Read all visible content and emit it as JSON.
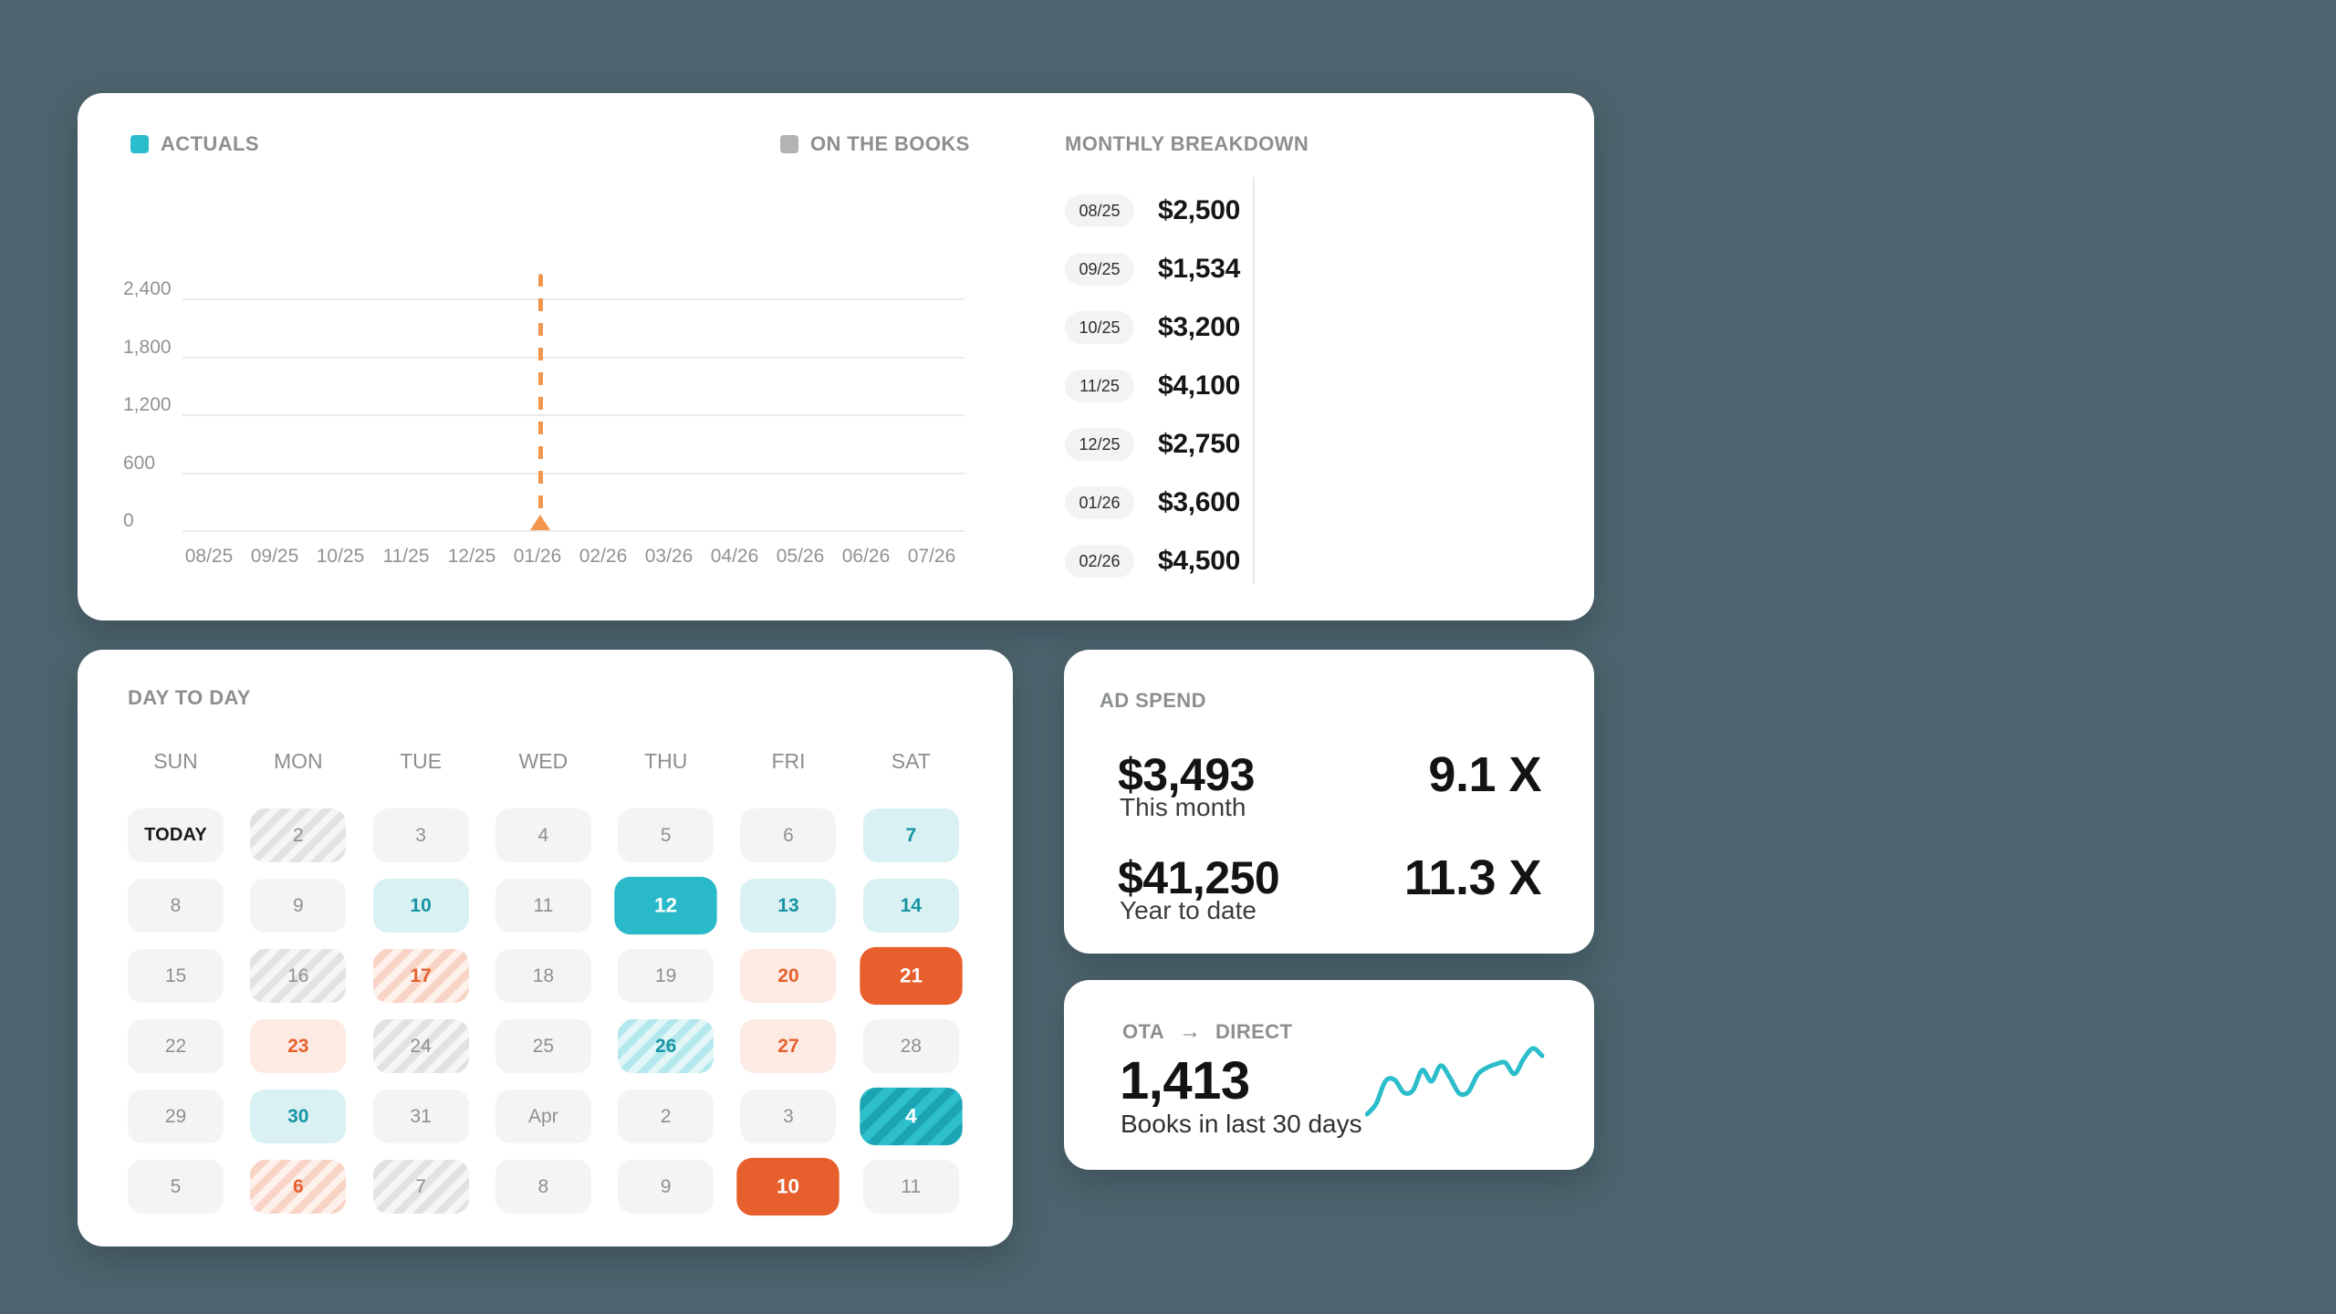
{
  "colors": {
    "background": "#4d646e",
    "teal_accent": "#2bbccb",
    "legend_gray": "#b1b3b4",
    "orange_accent": "#e75f2c",
    "marker_orange": "#f2964e"
  },
  "revenue_chart": {
    "legend": [
      {
        "label": "ACTUALS",
        "color": "#2bbccb"
      },
      {
        "label": "ON THE BOOKS",
        "color": "#b1b3b4"
      }
    ],
    "monthly_title": "MONTHLY BREAKDOWN",
    "y_ticks": [
      "2,400",
      "1,800",
      "1,200",
      "600",
      "0"
    ],
    "x_ticks": [
      "08/25",
      "09/25",
      "10/25",
      "11/25",
      "12/25",
      "01/26",
      "02/26",
      "03/26",
      "04/26",
      "05/26",
      "06/26",
      "07/26"
    ],
    "today_marker_x": "01/26",
    "monthly_breakdown": [
      {
        "month": "08/25",
        "value": "$2,500"
      },
      {
        "month": "09/25",
        "value": "$1,534"
      },
      {
        "month": "10/25",
        "value": "$3,200"
      },
      {
        "month": "11/25",
        "value": "$4,100"
      },
      {
        "month": "12/25",
        "value": "$2,750"
      },
      {
        "month": "01/26",
        "value": "$3,600"
      },
      {
        "month": "02/26",
        "value": "$4,500"
      }
    ]
  },
  "chart_data": [
    {
      "type": "line",
      "title": "",
      "x": [
        "08/25",
        "09/25",
        "10/25",
        "11/25",
        "12/25",
        "01/26",
        "02/26",
        "03/26",
        "04/26",
        "05/26",
        "06/26",
        "07/26"
      ],
      "y_ticks": [
        0,
        600,
        1200,
        1800,
        2400
      ],
      "ylim": [
        0,
        2400
      ],
      "grid": "horizontal",
      "legend_position": "top",
      "series": [
        {
          "name": "ACTUALS",
          "values": []
        },
        {
          "name": "ON THE BOOKS",
          "values": []
        }
      ],
      "annotations": [
        {
          "type": "vline",
          "x": "01/26",
          "style": "dashed",
          "color": "#f2964e",
          "marker": "triangle-up"
        }
      ]
    },
    {
      "type": "line",
      "title": "",
      "label": "Books in last 30 days",
      "color": "#2cbdcb",
      "values_relative_0to100": [
        6,
        20,
        50,
        52,
        35,
        38,
        65,
        50,
        71,
        55,
        34,
        36,
        59,
        68,
        73,
        75,
        60,
        80,
        94,
        84
      ]
    }
  ],
  "calendar": {
    "title": "DAY TO DAY",
    "day_headers": [
      "SUN",
      "MON",
      "TUE",
      "WED",
      "THU",
      "FRI",
      "SAT"
    ],
    "cells": [
      {
        "label": "TODAY",
        "style": "today"
      },
      {
        "label": "2",
        "style": "gray-stripe"
      },
      {
        "label": "3",
        "style": "default"
      },
      {
        "label": "4",
        "style": "default"
      },
      {
        "label": "5",
        "style": "default"
      },
      {
        "label": "6",
        "style": "default"
      },
      {
        "label": "7",
        "style": "teal-light"
      },
      {
        "label": "8",
        "style": "default"
      },
      {
        "label": "9",
        "style": "default"
      },
      {
        "label": "10",
        "style": "teal-light"
      },
      {
        "label": "11",
        "style": "default"
      },
      {
        "label": "12",
        "style": "teal-solid"
      },
      {
        "label": "13",
        "style": "teal-light"
      },
      {
        "label": "14",
        "style": "teal-light"
      },
      {
        "label": "15",
        "style": "default"
      },
      {
        "label": "16",
        "style": "gray-stripe"
      },
      {
        "label": "17",
        "style": "orange-stripe"
      },
      {
        "label": "18",
        "style": "default"
      },
      {
        "label": "19",
        "style": "default"
      },
      {
        "label": "20",
        "style": "orange-light"
      },
      {
        "label": "21",
        "style": "orange-solid"
      },
      {
        "label": "22",
        "style": "default"
      },
      {
        "label": "23",
        "style": "orange-light"
      },
      {
        "label": "24",
        "style": "gray-stripe"
      },
      {
        "label": "25",
        "style": "default"
      },
      {
        "label": "26",
        "style": "teal-stripe-light"
      },
      {
        "label": "27",
        "style": "orange-light"
      },
      {
        "label": "28",
        "style": "default"
      },
      {
        "label": "29",
        "style": "default"
      },
      {
        "label": "30",
        "style": "teal-light"
      },
      {
        "label": "31",
        "style": "default"
      },
      {
        "label": "Apr",
        "style": "default"
      },
      {
        "label": "2",
        "style": "default"
      },
      {
        "label": "3",
        "style": "default"
      },
      {
        "label": "4",
        "style": "teal-stripe-solid"
      },
      {
        "label": "5",
        "style": "default"
      },
      {
        "label": "6",
        "style": "orange-stripe"
      },
      {
        "label": "7",
        "style": "gray-stripe"
      },
      {
        "label": "8",
        "style": "default"
      },
      {
        "label": "9",
        "style": "default"
      },
      {
        "label": "10",
        "style": "orange-solid"
      },
      {
        "label": "11",
        "style": "default"
      }
    ]
  },
  "ad_spend": {
    "title": "AD SPEND",
    "rows": [
      {
        "amount": "$3,493",
        "label": "This month",
        "multiple": "9.1 X"
      },
      {
        "amount": "$41,250",
        "label": "Year to date",
        "multiple": "11.3 X"
      }
    ]
  },
  "ota": {
    "from": "OTA",
    "arrow": "→",
    "to": "DIRECT",
    "value": "1,413",
    "label": "Books in last 30 days"
  }
}
